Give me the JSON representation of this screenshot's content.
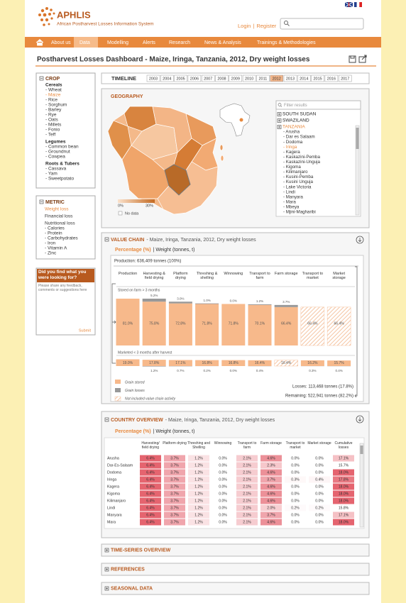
{
  "header": {
    "logo": "APHLIS",
    "subtitle": "African Postharvest Losses Information System",
    "login": "Login",
    "separator": "|",
    "register": "Register"
  },
  "nav": [
    "About us",
    "Data",
    "Modelling",
    "Alerts",
    "Research",
    "News & Analysis",
    "Trainings & Methodologies"
  ],
  "title": "Postharvest Losses Dashboard - Maize, Iringa, Tanzania, 2012, Dry weight losses",
  "crop": {
    "title": "CROP",
    "groups": [
      {
        "name": "Cereals",
        "items": [
          "- Wheat",
          "- Maize",
          "- Rice",
          "- Sorghum",
          "- Barley",
          "- Rye",
          "- Oats",
          "- Millets",
          "- Fonio",
          "- Teff"
        ]
      },
      {
        "name": "Legumes",
        "items": [
          "- Common bean",
          "- Groundnut",
          "- Cowpea"
        ]
      },
      {
        "name": "Roots & Tubers",
        "items": [
          "- Cassava",
          "- Yam",
          "- Sweetpotato"
        ]
      }
    ]
  },
  "metric": {
    "title": "METRIC",
    "items": [
      "Weight loss",
      "Financial loss",
      "Nutritional loss"
    ],
    "nutritional_items": [
      "- Calories",
      "- Protein",
      "- Carbohydrates",
      "- Iron",
      "- Vitamin A",
      "- Zinc"
    ]
  },
  "feedback": {
    "title": "Did you find what you were looking for?",
    "placeholder": "Please share any feedback, comments or suggestions here",
    "submit": "Submit"
  },
  "timeline": {
    "title": "TIMELINE",
    "years": [
      "2003",
      "2004",
      "2005",
      "2006",
      "2007",
      "2008",
      "2009",
      "2010",
      "2011",
      "2012",
      "2013",
      "2014",
      "2015",
      "2016",
      "2017"
    ]
  },
  "geography": {
    "title": "GEOGRAPHY",
    "legend_min": "0%",
    "legend_max": "30%",
    "no_data": "No data",
    "filter_placeholder": "Filter results",
    "countries": [
      "SOUTH SUDAN",
      "SWAZILAND",
      "TANZANIA"
    ],
    "regions": [
      "- Arusha",
      "- Dar es Salaam",
      "- Dodoma",
      "- Iringa",
      "- Kagera",
      "- Kaskazini-Pemba",
      "- Kaskazini-Unguja",
      "- Kigoma",
      "- Kilimanjaro",
      "- Kusini-Pemba",
      "- Kusini Unguja",
      "- Lake Victoria",
      "- Lindi",
      "- Manyara",
      "- Mara",
      "- Mbeya",
      "- Mjini-Magharibi"
    ]
  },
  "value_chain": {
    "title": "VALUE CHAIN",
    "subtitle": "- Maize, Iringa, Tanzania, 2012, Dry weight losses",
    "unit_pct": "Percentage (%)",
    "unit_weight": "| Weight (tonnes, t)",
    "production": "Production: 636,409 tonnes (100%)",
    "stages": [
      "Production",
      "Harvesting & field drying",
      "Platform drying",
      "Threshing & shelling",
      "Winnowing",
      "Transport to farm",
      "Farm storage",
      "Transport to market",
      "Market storage"
    ],
    "stored_label": "Stored on farm > 3 months",
    "marketed_label": "Marketed < 3 months after harvest",
    "stored": {
      "values": [
        81,
        75.8,
        72.8,
        71.8,
        71.8,
        70.1,
        66.4,
        66.4,
        66.4
      ],
      "value_labels": [
        "81.0%",
        "75.8%",
        "72.8%",
        "71.8%",
        "71.8%",
        "70.1%",
        "66.4%",
        "66.4%",
        "66.4%"
      ]
    },
    "stored_losses": {
      "values": [
        null,
        5.2,
        3,
        1,
        0,
        1.2,
        3.7,
        null,
        null
      ],
      "value_labels": [
        null,
        "5.2%",
        "3.0%",
        "1.0%",
        "0.0%",
        "1.2%",
        "3.7%",
        null,
        null
      ]
    },
    "marketed": {
      "values": [
        19,
        17.8,
        17.1,
        16.8,
        16.8,
        16.4,
        16.4,
        16.2,
        15.7
      ],
      "value_labels": [
        "19.0%",
        "17.8%",
        "17.1%",
        "16.8%",
        "16.8%",
        "16.4%",
        "16.4%",
        "16.2%",
        "15.7%"
      ]
    },
    "marketed_losses": {
      "values": [
        null,
        1.2,
        0.7,
        0.2,
        0,
        0.4,
        null,
        0.3,
        0.4
      ],
      "value_labels": [
        null,
        "1.2%",
        "0.7%",
        "0.2%",
        "0.0%",
        "0.4%",
        null,
        "0.3%",
        "0.4%"
      ]
    },
    "legend": [
      "Grain stored",
      "Grain losses",
      "Not included value chain activity"
    ],
    "losses": "Losses: 113,468 tonnes (17.8%)",
    "remaining": "Remaining: 522,941 tonnes (82.2%)"
  },
  "country_overview": {
    "title": "COUNTRY OVERVIEW",
    "subtitle": "- Maize, Iringa, Tanzania, 2012, Dry weight losses",
    "unit_pct": "Percentage (%)",
    "unit_weight": "| Weight (tonnes, t)",
    "columns": [
      "Harvesting/ field drying",
      "Platform drying",
      "Threshing and Shelling",
      "Winnowing",
      "Transport to farm",
      "Farm storage",
      "Transport to market",
      "Market storage",
      "Cumulative losses"
    ],
    "rows": [
      [
        "Arusha",
        "6.4%",
        "3.7%",
        "1.2%",
        "0.0%",
        "2.1%",
        "4.6%",
        "0.0%",
        "0.0%",
        "17.1%"
      ],
      [
        "Dar-Es-Salaam",
        "6.4%",
        "3.7%",
        "1.2%",
        "0.0%",
        "2.1%",
        "2.3%",
        "0.0%",
        "0.0%",
        "15.7%"
      ],
      [
        "Dodoma",
        "6.4%",
        "3.7%",
        "1.2%",
        "0.0%",
        "2.1%",
        "4.6%",
        "0.0%",
        "0.0%",
        "18.0%"
      ],
      [
        "Iringa",
        "6.4%",
        "3.7%",
        "1.2%",
        "0.0%",
        "2.1%",
        "3.7%",
        "0.3%",
        "0.4%",
        "17.8%"
      ],
      [
        "Kagera",
        "6.4%",
        "3.7%",
        "1.2%",
        "0.0%",
        "2.1%",
        "4.6%",
        "0.0%",
        "0.0%",
        "18.0%"
      ],
      [
        "Kigoma",
        "6.4%",
        "3.7%",
        "1.2%",
        "0.0%",
        "2.1%",
        "4.6%",
        "0.0%",
        "0.0%",
        "18.0%"
      ],
      [
        "Kilimanjaro",
        "6.4%",
        "3.7%",
        "1.2%",
        "0.0%",
        "2.1%",
        "4.6%",
        "0.0%",
        "0.0%",
        "18.0%"
      ],
      [
        "Lindi",
        "6.4%",
        "3.7%",
        "1.2%",
        "0.0%",
        "2.1%",
        "2.0%",
        "0.2%",
        "0.2%",
        "15.8%"
      ],
      [
        "Manyara",
        "6.4%",
        "3.7%",
        "1.2%",
        "0.0%",
        "2.1%",
        "3.7%",
        "0.0%",
        "0.0%",
        "17.1%"
      ],
      [
        "Mara",
        "6.4%",
        "3.7%",
        "1.2%",
        "0.0%",
        "2.1%",
        "4.6%",
        "0.0%",
        "0.0%",
        "18.0%"
      ]
    ]
  },
  "sections": [
    "TIME-SERIES OVERVIEW",
    "REFERENCES",
    "SEASONAL DATA"
  ]
}
